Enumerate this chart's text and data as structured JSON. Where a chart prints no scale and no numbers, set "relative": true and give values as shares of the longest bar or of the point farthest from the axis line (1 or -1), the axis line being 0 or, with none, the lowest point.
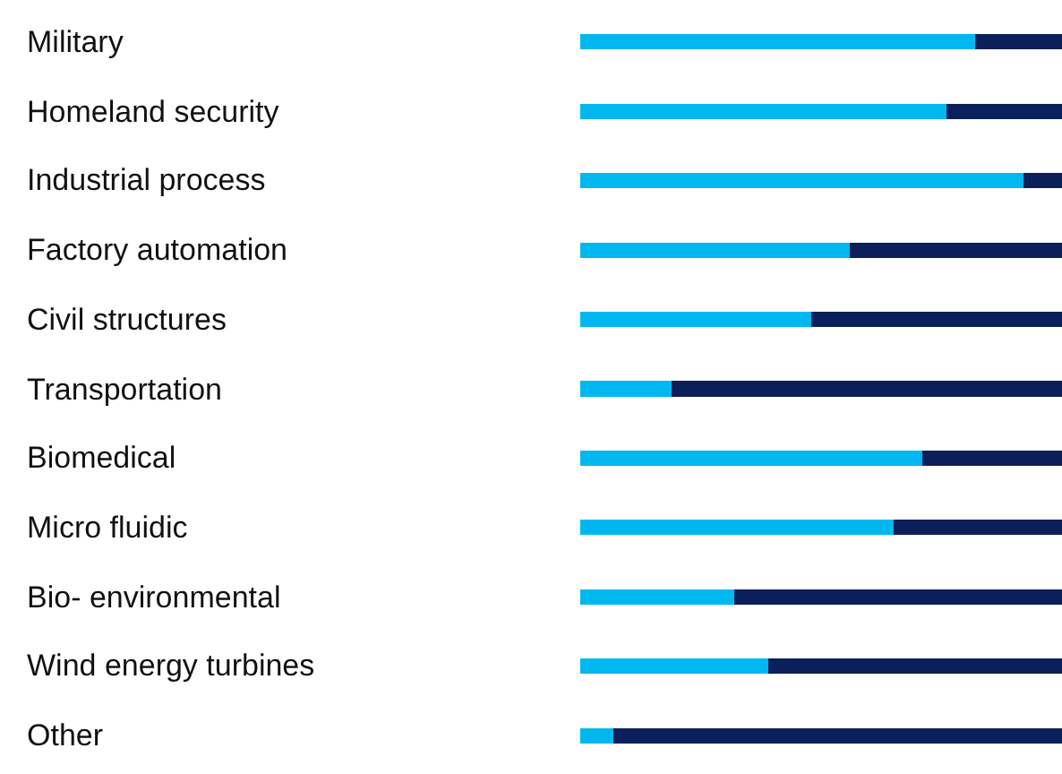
{
  "chart_data": {
    "type": "bar",
    "orientation": "horizontal",
    "stacked": true,
    "relative": true,
    "categories": [
      "Military",
      "Homeland security",
      "Industrial process",
      "Factory automation",
      "Civil structures",
      "Transportation",
      "Biomedical",
      "Micro fluidic",
      "Bio- environmental",
      "Wind energy turbines",
      "Other"
    ],
    "series": [
      {
        "color": "#00b8ef",
        "values": [
          0.82,
          0.76,
          0.92,
          0.56,
          0.48,
          0.19,
          0.71,
          0.65,
          0.32,
          0.39,
          0.07
        ]
      },
      {
        "color": "#0b1f5a",
        "values": [
          0.18,
          0.24,
          0.08,
          0.44,
          0.52,
          0.81,
          0.29,
          0.35,
          0.68,
          0.61,
          0.93
        ]
      }
    ]
  }
}
